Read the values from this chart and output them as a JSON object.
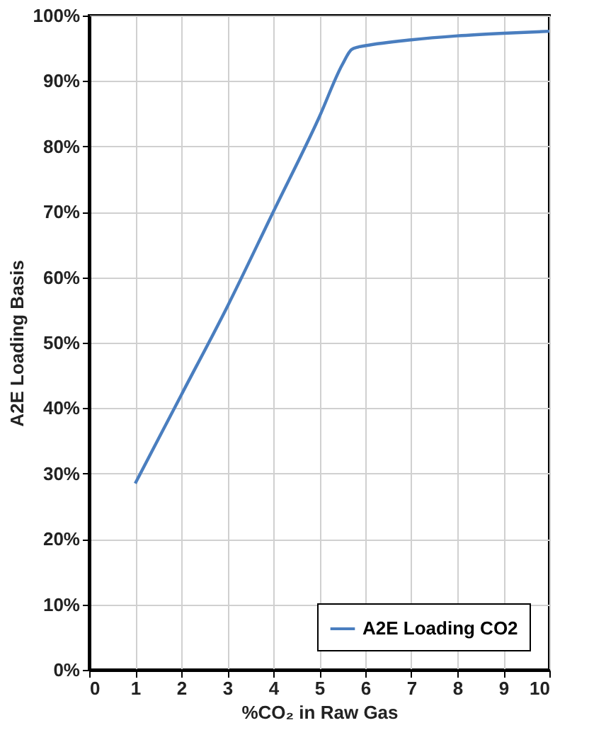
{
  "chart_data": {
    "type": "line",
    "xlabel": "%CO₂ in Raw Gas",
    "ylabel": "A2E Loading Basis",
    "x": [
      1,
      2,
      3,
      4,
      5,
      5.5,
      5.7,
      5.85,
      6,
      7,
      8,
      9,
      10
    ],
    "series": [
      {
        "name": "A2E Loading CO2",
        "color": "#4a7ebf",
        "values": [
          28.5,
          42,
          55.5,
          70,
          84.5,
          92.5,
          94.8,
          95.2,
          95.4,
          96.3,
          96.9,
          97.3,
          97.6
        ]
      }
    ],
    "xlim": [
      0,
      10
    ],
    "xticks": [
      0,
      1,
      2,
      3,
      4,
      5,
      6,
      7,
      8,
      9,
      10
    ],
    "ylim": [
      0,
      100
    ],
    "yticks": [
      {
        "value": 0,
        "label": "0%"
      },
      {
        "value": 10,
        "label": "10%"
      },
      {
        "value": 20,
        "label": "20%"
      },
      {
        "value": 30,
        "label": "30%"
      },
      {
        "value": 40,
        "label": "40%"
      },
      {
        "value": 50,
        "label": "50%"
      },
      {
        "value": 60,
        "label": "60%"
      },
      {
        "value": 70,
        "label": "70%"
      },
      {
        "value": 80,
        "label": "80%"
      },
      {
        "value": 90,
        "label": "90%"
      },
      {
        "value": 100,
        "label": "100%"
      }
    ],
    "grid": true,
    "legend": "bottom right",
    "marker": "none",
    "line_style": "solid"
  }
}
